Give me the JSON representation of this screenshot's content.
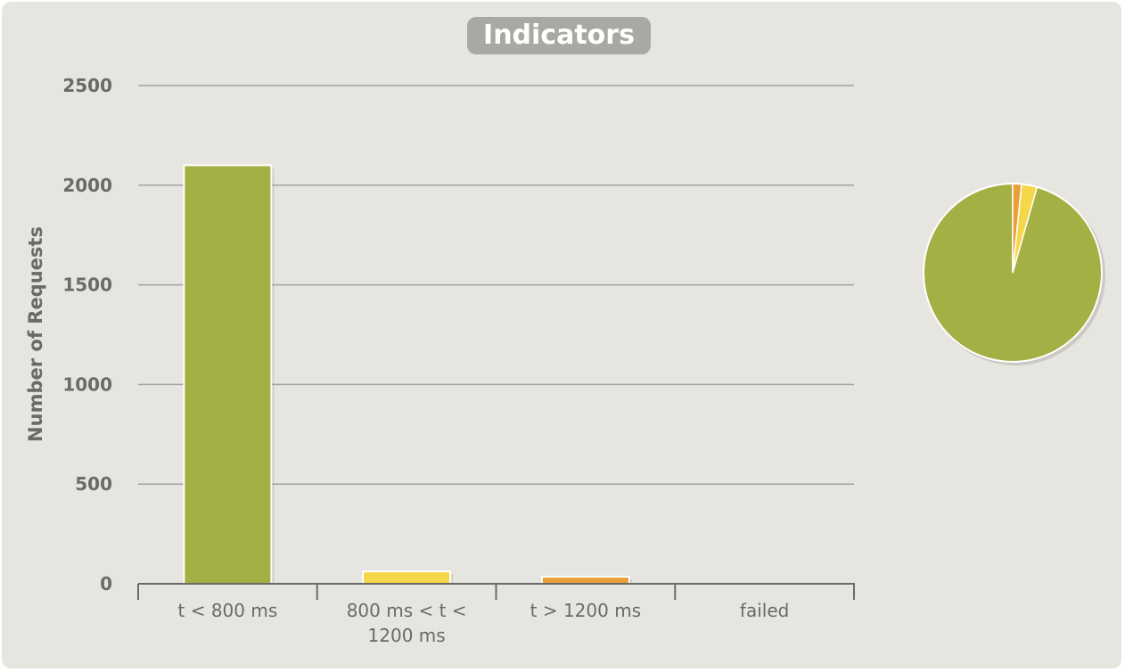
{
  "chart_data": [
    {
      "type": "bar",
      "title": "Indicators",
      "xlabel": "",
      "ylabel": "Number of Requests",
      "ylim": [
        0,
        2500
      ],
      "yticks": [
        0,
        500,
        1000,
        1500,
        2000,
        2500
      ],
      "grid": true,
      "categories": [
        "t < 800 ms",
        "800 ms < t < 1200 ms",
        "t > 1200 ms",
        "failed"
      ],
      "category_lines": [
        [
          "t < 800 ms"
        ],
        [
          "800 ms < t <",
          "1200 ms"
        ],
        [
          "t > 1200 ms"
        ],
        [
          "failed"
        ]
      ],
      "values": [
        2100,
        62,
        35,
        0
      ],
      "colors": [
        "#a4b043",
        "#f5d84a",
        "#eb9f38",
        "#e05a4b"
      ]
    },
    {
      "type": "pie",
      "categories": [
        "t < 800 ms",
        "800 ms < t < 1200 ms",
        "t > 1200 ms",
        "failed"
      ],
      "values": [
        2100,
        62,
        35,
        0
      ],
      "colors": [
        "#a4b043",
        "#f5d84a",
        "#eb9f38",
        "#e05a4b"
      ]
    }
  ]
}
